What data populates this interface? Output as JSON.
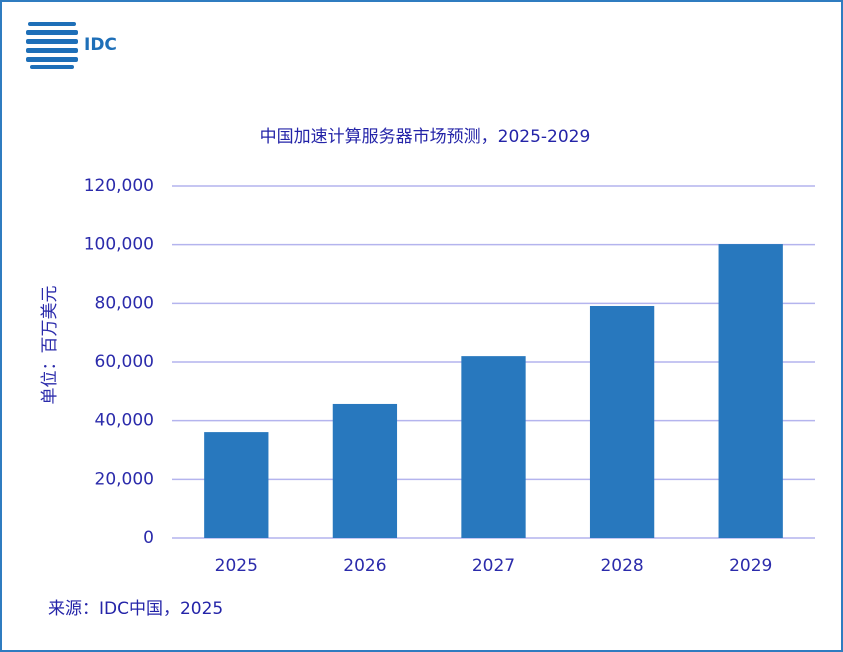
{
  "logo": "IDC",
  "chart_data": {
    "type": "bar",
    "title": "中国加速计算服务器市场预测，2025-2029",
    "y_label": "单位：百万美元",
    "source": "来源：IDC中国，2025",
    "categories": [
      "2025",
      "2026",
      "2027",
      "2028",
      "2029"
    ],
    "values": [
      36100,
      45700,
      62000,
      79100,
      100200
    ],
    "color": "#2878be",
    "ylim": [
      0,
      120000
    ],
    "yticks": [
      0,
      {
        "value": 20000,
        "label": "20,000"
      },
      {
        "value": 40000,
        "label": "40,000"
      },
      {
        "value": 60000,
        "label": "60,000"
      },
      {
        "value": 80000,
        "label": "80,000"
      },
      {
        "value": 100000,
        "label": "100,000"
      },
      {
        "value": 120000,
        "label": "120,000"
      }
    ],
    "grid": true
  }
}
